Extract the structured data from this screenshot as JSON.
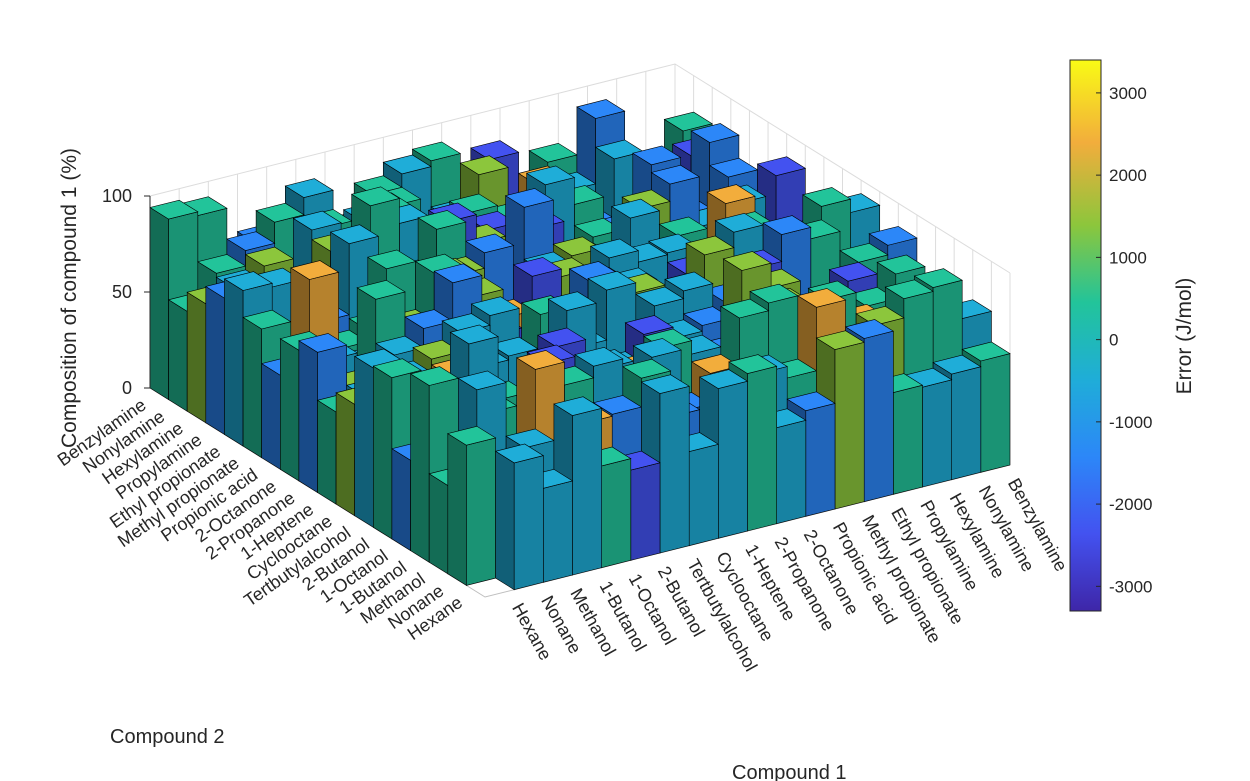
{
  "chart_data": {
    "type": "bar3d",
    "title": "",
    "xlabel": "Compound 1",
    "ylabel": "Compound 2",
    "zlabel": "Composition of compound 1 (%)",
    "zlim": [
      0,
      100
    ],
    "z_ticks": [
      "0",
      "50",
      "100"
    ],
    "compounds": [
      "Hexane",
      "Nonane",
      "Methanol",
      "1-Butanol",
      "1-Octanol",
      "2-Butanol",
      "Tertbutylalcohol",
      "Cyclooctane",
      "1-Heptene",
      "2-Propanone",
      "2-Octanone",
      "Propionic acid",
      "Methyl propionate",
      "Ethyl propionate",
      "Propylamine",
      "Hexylamine",
      "Nonylamine",
      "Benzylamine"
    ],
    "grid": true,
    "colorbar": {
      "label": "Error (J/mol)",
      "range": [
        -3300,
        3400
      ],
      "ticks": [
        "3000",
        "2000",
        "1000",
        "0",
        "-1000",
        "-2000",
        "-3000"
      ],
      "tick_values": [
        3000,
        2000,
        1000,
        0,
        -1000,
        -2000,
        -3000
      ],
      "colormap": "parula",
      "colors": [
        "#3e26a8",
        "#4352f0",
        "#2c87f8",
        "#1fadd8",
        "#22c49a",
        "#8cc63c",
        "#f2ad3c",
        "#f9fb15"
      ]
    },
    "box_color": "#000000"
  }
}
